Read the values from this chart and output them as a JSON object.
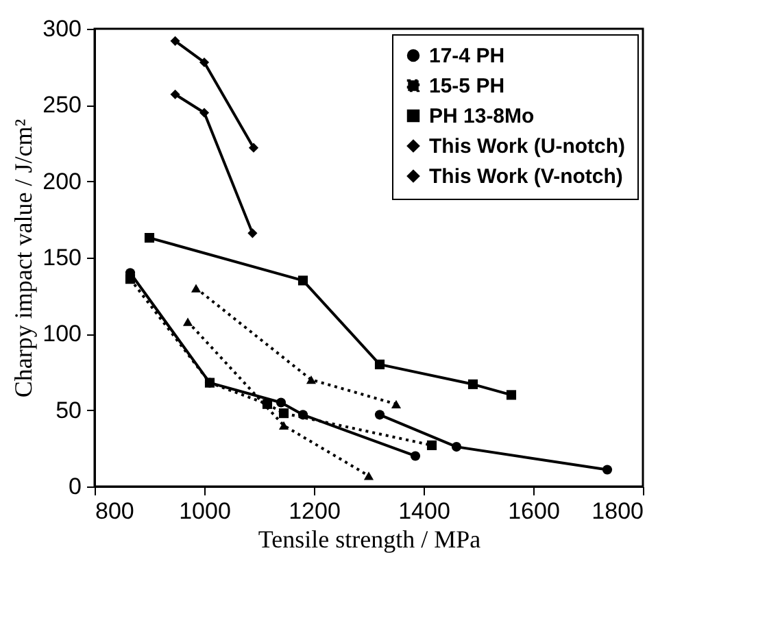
{
  "chart_data": {
    "type": "line",
    "xlabel": "Tensile strength / MPa",
    "ylabel": "Charpy impact value / J/cm²",
    "xlim": [
      800,
      1800
    ],
    "xticks": [
      800,
      1000,
      1200,
      1400,
      1600,
      1800
    ],
    "ylim": [
      0,
      300
    ],
    "yticks": [
      0,
      50,
      100,
      150,
      200,
      250,
      300
    ],
    "grid": false,
    "legend": "top right",
    "series": [
      {
        "name": "17-4 PH",
        "color": "#000000",
        "marker": "circle",
        "line_style": "solid",
        "x": [
          865,
          1010,
          1140,
          1180,
          1385
        ],
        "values": [
          140,
          68,
          55,
          47,
          20
        ]
      },
      {
        "color": "#000000",
        "marker": "triangle",
        "line_style": "dotted",
        "x": [
          970,
          1145,
          1300
        ],
        "values": [
          108,
          40,
          7
        ]
      },
      {
        "name": "15-5 PH",
        "color": "#000000",
        "marker": "square",
        "line_style": "dotted",
        "x": [
          865,
          1010,
          1115,
          1145,
          1415
        ],
        "values": [
          136,
          68,
          54,
          48,
          27
        ]
      },
      {
        "name": "PH 13-8Mo",
        "color": "#000000",
        "marker": "square",
        "line_style": "solid",
        "x": [
          900,
          1180,
          1320,
          1490,
          1560
        ],
        "values": [
          163,
          135,
          80,
          67,
          60
        ]
      },
      {
        "color": "#000000",
        "marker": "circle",
        "line_style": "solid",
        "x": [
          1320,
          1460,
          1735
        ],
        "values": [
          47,
          26,
          11
        ]
      },
      {
        "color": "#000000",
        "marker": "triangle",
        "line_style": "dotted",
        "x": [
          985,
          1195,
          1350
        ],
        "values": [
          130,
          70,
          54
        ]
      },
      {
        "name": "This Work (U-notch)",
        "color": "#000000",
        "marker": "diamond",
        "line_style": "solid",
        "x": [
          947,
          1000,
          1090
        ],
        "values": [
          292,
          278,
          222
        ]
      },
      {
        "name": "This Work (V-notch)",
        "color": "#000000",
        "marker": "diamond",
        "line_style": "solid",
        "x": [
          947,
          1000,
          1088
        ],
        "values": [
          257,
          245,
          166
        ]
      }
    ]
  }
}
